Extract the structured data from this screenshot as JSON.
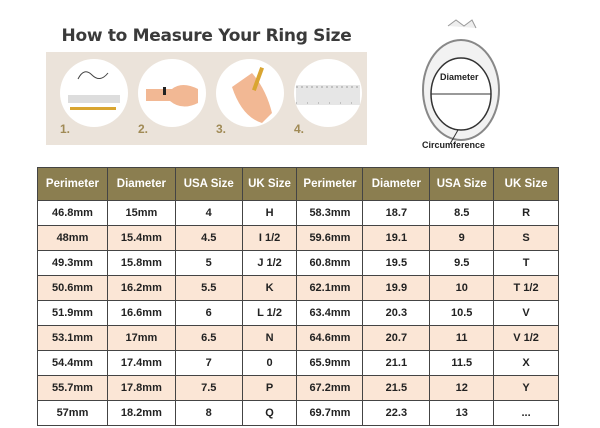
{
  "title": "How to Measure Your Ring Size",
  "steps": [
    "1.",
    "2.",
    "3.",
    "4."
  ],
  "ring_diagram": {
    "diameter_label": "Diameter",
    "circumference_label": "Circumference"
  },
  "table": {
    "headers": [
      "Perimeter",
      "Diameter",
      "USA Size",
      "UK Size",
      "Perimeter",
      "Diameter",
      "USA Size",
      "UK Size"
    ],
    "rows": [
      [
        "46.8mm",
        "15mm",
        "4",
        "H",
        "58.3mm",
        "18.7",
        "8.5",
        "R"
      ],
      [
        "48mm",
        "15.4mm",
        "4.5",
        "I 1/2",
        "59.6mm",
        "19.1",
        "9",
        "S"
      ],
      [
        "49.3mm",
        "15.8mm",
        "5",
        "J 1/2",
        "60.8mm",
        "19.5",
        "9.5",
        "T"
      ],
      [
        "50.6mm",
        "16.2mm",
        "5.5",
        "K",
        "62.1mm",
        "19.9",
        "10",
        "T 1/2"
      ],
      [
        "51.9mm",
        "16.6mm",
        "6",
        "L 1/2",
        "63.4mm",
        "20.3",
        "10.5",
        "V"
      ],
      [
        "53.1mm",
        "17mm",
        "6.5",
        "N",
        "64.6mm",
        "20.7",
        "11",
        "V 1/2"
      ],
      [
        "54.4mm",
        "17.4mm",
        "7",
        "0",
        "65.9mm",
        "21.1",
        "11.5",
        "X"
      ],
      [
        "55.7mm",
        "17.8mm",
        "7.5",
        "P",
        "67.2mm",
        "21.5",
        "12",
        "Y"
      ],
      [
        "57mm",
        "18.2mm",
        "8",
        "Q",
        "69.7mm",
        "22.3",
        "13",
        "..."
      ]
    ]
  },
  "colors": {
    "header_bg": "#8b7e50",
    "alt_row": "#fbe6d6",
    "banner_bg": "#ebe3da"
  }
}
